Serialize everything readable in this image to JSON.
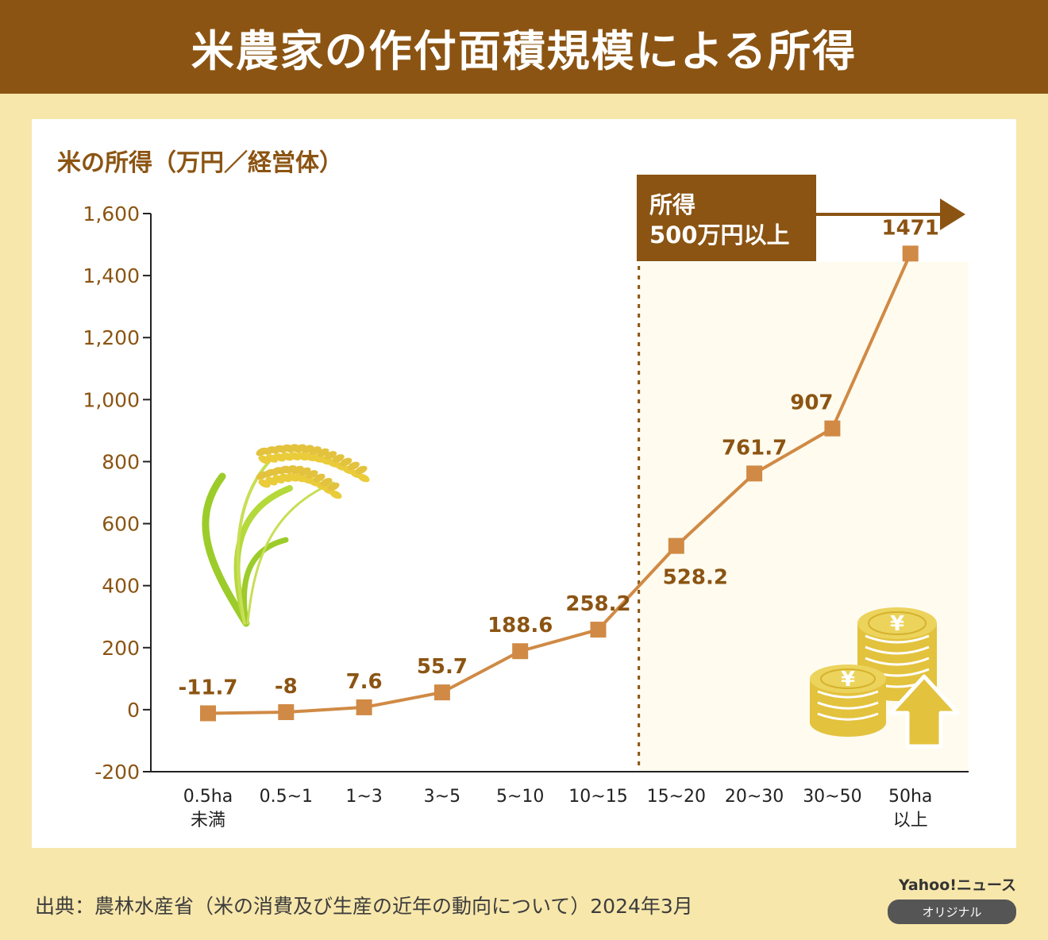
{
  "title": "米農家の作付面積規模による所得",
  "source": "出典：農林水産省（米の消費及び生産の近年の動向について）2024年3月",
  "logo": {
    "brand": "Yahoo!ニュース",
    "tag": "オリジナル"
  },
  "colors": {
    "header": "#8b5412",
    "background": "#f8e7ab",
    "line": "#d08a45",
    "marker": "#d08a45",
    "label": "#8b5412",
    "highlight": "#fffbef",
    "coin": "#e3c23e"
  },
  "chart_data": {
    "type": "line",
    "ylabel": "米の所得（万円／経営体）",
    "categories": [
      "0.5ha\n未満",
      "0.5~1",
      "1~3",
      "3~5",
      "5~10",
      "10~15",
      "15~20",
      "20~30",
      "30~50",
      "50ha\n以上"
    ],
    "values": [
      -11.7,
      -8,
      7.6,
      55.7,
      188.6,
      258.2,
      528.2,
      761.7,
      907,
      1471
    ],
    "data_labels": [
      "-11.7",
      "-8",
      "7.6",
      "55.7",
      "188.6",
      "258.2",
      "528.2",
      "761.7",
      "907",
      "1471"
    ],
    "ylim": [
      -200,
      1600
    ],
    "yticks": [
      -200,
      0,
      200,
      400,
      600,
      800,
      1000,
      1200,
      1400,
      1600
    ],
    "ytick_labels": [
      "-200",
      "0",
      "200",
      "400",
      "600",
      "800",
      "1,000",
      "1,200",
      "1,400",
      "1,600"
    ],
    "highlight": {
      "from_category_index": 6,
      "label": [
        "所得",
        "500万円以上"
      ]
    },
    "grid": false,
    "legend": "none"
  }
}
